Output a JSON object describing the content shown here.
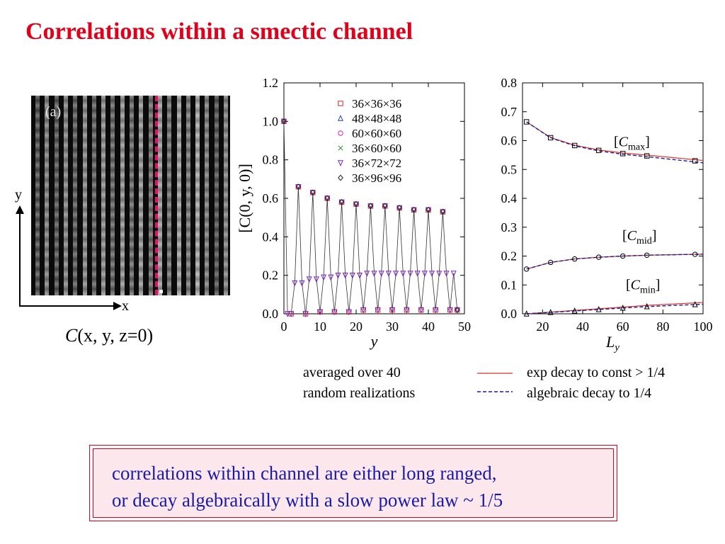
{
  "slide": {
    "title": "Correlations within a smectic channel",
    "snapshot": {
      "panel_label": "(a)",
      "y_label": "y",
      "x_label": "x",
      "caption_italic": "C",
      "caption_rest": "(x, y, z=0)"
    },
    "notes": {
      "averaged_line1": "averaged over 40",
      "averaged_line2": "random realizations",
      "legend_exp": "exp decay to const > 1/4",
      "legend_alg": "algebraic decay to 1/4"
    },
    "summary": {
      "line1": "correlations within channel are either long ranged,",
      "line2": "or decay algebraically with a slow power law ~ 1/5"
    }
  },
  "chart_data": [
    {
      "type": "line",
      "xlabel": "y",
      "ylabel": "[C(0, y, 0)]",
      "xlim": [
        0,
        50
      ],
      "ylim": [
        0,
        1.2
      ],
      "xticks": [
        0,
        10,
        20,
        30,
        40,
        50
      ],
      "yticks": [
        0.0,
        0.2,
        0.4,
        0.6,
        0.8,
        1.0,
        1.2
      ],
      "legend": [
        "36×36×36",
        "48×48×48",
        "60×60×60",
        "36×60×60",
        "36×72×72",
        "36×96×96"
      ],
      "legend_colors": [
        "#d62728",
        "#1f3fbf",
        "#e020c0",
        "#2a8a2a",
        "#7a1fc0",
        "#222222"
      ],
      "legend_markers": [
        "square",
        "triangle",
        "circle",
        "x",
        "triangle-down",
        "diamond"
      ],
      "legend_position": "top-right",
      "series": [
        {
          "name": "36×96×96",
          "x": [
            0,
            1,
            2,
            3,
            4,
            5,
            6,
            7,
            8,
            9,
            10,
            11,
            12,
            13,
            14,
            15,
            16,
            17,
            18,
            19,
            20,
            21,
            22,
            23,
            24,
            25,
            26,
            27,
            28,
            29,
            30,
            31,
            32,
            33,
            34,
            35,
            36,
            37,
            38,
            39,
            40,
            41,
            42,
            43,
            44,
            45,
            46,
            47,
            48
          ],
          "y": [
            1.0,
            0.0,
            0.0,
            0.16,
            0.66,
            0.16,
            0.0,
            0.18,
            0.63,
            0.18,
            0.01,
            0.19,
            0.6,
            0.19,
            0.01,
            0.2,
            0.58,
            0.2,
            0.01,
            0.2,
            0.57,
            0.2,
            0.02,
            0.21,
            0.56,
            0.21,
            0.02,
            0.21,
            0.56,
            0.21,
            0.02,
            0.21,
            0.55,
            0.21,
            0.02,
            0.21,
            0.54,
            0.21,
            0.02,
            0.21,
            0.54,
            0.21,
            0.02,
            0.21,
            0.53,
            0.21,
            0.02,
            0.21,
            0.02
          ]
        }
      ]
    },
    {
      "type": "line",
      "xlabel": "L_y",
      "ylabel": "",
      "xlim": [
        10,
        100
      ],
      "ylim": [
        0,
        0.8
      ],
      "xticks": [
        20,
        40,
        60,
        80,
        100
      ],
      "yticks": [
        0.0,
        0.1,
        0.2,
        0.3,
        0.4,
        0.5,
        0.6,
        0.7,
        0.8
      ],
      "annotations": [
        "[C_max]",
        "[C_mid]",
        "[C_min]"
      ],
      "series": [
        {
          "name": "C_max",
          "x": [
            12,
            24,
            36,
            48,
            60,
            72,
            96
          ],
          "y": [
            0.665,
            0.61,
            0.583,
            0.566,
            0.555,
            0.547,
            0.53
          ]
        },
        {
          "name": "C_mid",
          "x": [
            12,
            24,
            36,
            48,
            60,
            72,
            96
          ],
          "y": [
            0.155,
            0.178,
            0.19,
            0.196,
            0.2,
            0.203,
            0.206
          ]
        },
        {
          "name": "C_min",
          "x": [
            12,
            24,
            36,
            48,
            60,
            72,
            96
          ],
          "y": [
            0.0,
            0.005,
            0.01,
            0.015,
            0.02,
            0.025,
            0.032
          ]
        }
      ],
      "fits": [
        "exp decay to const > 1/4",
        "algebraic decay to 1/4"
      ],
      "fit_colors": [
        "#e0302a",
        "#1a1a9a"
      ]
    }
  ]
}
